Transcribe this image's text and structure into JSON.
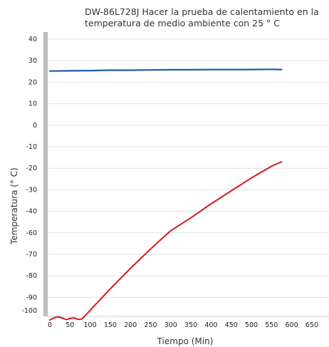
{
  "chart_data": {
    "type": "line",
    "title": "DW-86L728J  Hacer la prueba de calentamiento en la temperatura de medio ambiente con 25 ° C",
    "xlabel": "Tiempo (Min)",
    "ylabel": "Temperatura (° C)",
    "xticks": [
      "0",
      "50",
      "100",
      "150",
      "200",
      "250",
      "300",
      "350",
      "400",
      "450",
      "500",
      "550",
      "600",
      "650"
    ],
    "yticks": [
      "40",
      "30",
      "20",
      "10",
      "0",
      "-10",
      "-20",
      "-30",
      "-40",
      "-60",
      "-70",
      "-80",
      "-90",
      "-100"
    ],
    "grid": true,
    "series": [
      {
        "color": "#1f5aa8",
        "x": [
          0,
          50,
          100,
          150,
          200,
          250,
          300,
          350,
          400,
          450,
          500,
          550,
          575
        ],
        "y": [
          25.2,
          25.3,
          25.4,
          25.6,
          25.6,
          25.7,
          25.8,
          25.8,
          25.9,
          25.9,
          25.9,
          26,
          25.9
        ]
      },
      {
        "color": "#d7191f",
        "x": [
          0,
          10,
          20,
          30,
          40,
          50,
          60,
          70,
          80,
          100,
          150,
          200,
          250,
          300,
          350,
          400,
          450,
          500,
          550,
          575
        ],
        "y": [
          -90.5,
          -89.5,
          -89.0,
          -89.5,
          -90.3,
          -89.8,
          -89.5,
          -90.2,
          -90.0,
          -86.0,
          -76.0,
          -66.5,
          -57.5,
          -49.0,
          -43.0,
          -36.5,
          -30.5,
          -24.5,
          -19.0,
          -17.0
        ]
      }
    ]
  }
}
